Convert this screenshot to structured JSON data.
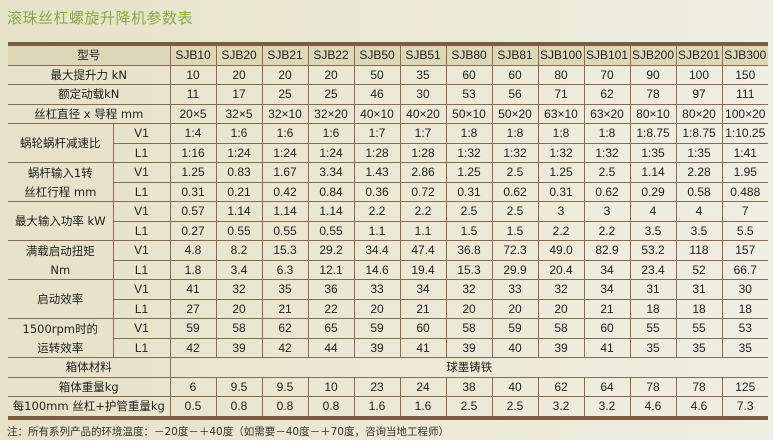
{
  "title": "滚珠丝杠螺旋升降机参数表",
  "header": {
    "label": "型号",
    "models": [
      "SJB10",
      "SJB20",
      "SJB21",
      "SJB22",
      "SJB50",
      "SJB51",
      "SJB80",
      "SJB81",
      "SJB100",
      "SJB101",
      "SJB200",
      "SJB201",
      "SJB300"
    ]
  },
  "rows": [
    {
      "label": "最大提升力 kN",
      "values": [
        "10",
        "20",
        "20",
        "20",
        "50",
        "35",
        "60",
        "60",
        "80",
        "70",
        "90",
        "100",
        "150"
      ]
    },
    {
      "label": "额定动载kN",
      "values": [
        "11",
        "17",
        "25",
        "25",
        "46",
        "30",
        "53",
        "56",
        "71",
        "62",
        "78",
        "97",
        "111"
      ]
    },
    {
      "label": "丝杠直径 x 导程 mm",
      "values": [
        "20×5",
        "32×5",
        "32×10",
        "32×20",
        "40×10",
        "40×20",
        "50×10",
        "50×20",
        "63×10",
        "63×20",
        "80×10",
        "80×20",
        "100×20"
      ]
    }
  ],
  "groups": [
    {
      "label": "蜗轮蜗杆减速比",
      "rows": [
        {
          "sub": "V1",
          "values": [
            "1:4",
            "1:6",
            "1:6",
            "1:6",
            "1:7",
            "1:7",
            "1:8",
            "1:8",
            "1:8",
            "1:8",
            "1:8.75",
            "1:8.75",
            "1:10.25"
          ]
        },
        {
          "sub": "L1",
          "values": [
            "1:16",
            "1:24",
            "1:24",
            "1:24",
            "1:28",
            "1:28",
            "1:32",
            "1:32",
            "1:32",
            "1:32",
            "1:35",
            "1:35",
            "1:41"
          ]
        }
      ]
    },
    {
      "label": "蜗杆输入1转",
      "label2": "丝杠行程 mm",
      "rows": [
        {
          "sub": "V1",
          "values": [
            "1.25",
            "0.83",
            "1.67",
            "3.34",
            "1.43",
            "2.86",
            "1.25",
            "2.5",
            "1.25",
            "2.5",
            "1.14",
            "2.28",
            "1.95"
          ]
        },
        {
          "sub": "L1",
          "values": [
            "0.31",
            "0.21",
            "0.42",
            "0.84",
            "0.36",
            "0.72",
            "0.31",
            "0.62",
            "0.31",
            "0.62",
            "0.29",
            "0.58",
            "0.488"
          ]
        }
      ]
    },
    {
      "label": "最大输入功率 kW",
      "rows": [
        {
          "sub": "V1",
          "values": [
            "0.57",
            "1.14",
            "1.14",
            "1.14",
            "2.2",
            "2.2",
            "2.5",
            "2.5",
            "3",
            "3",
            "4",
            "4",
            "7"
          ]
        },
        {
          "sub": "L1",
          "values": [
            "0.27",
            "0.55",
            "0.55",
            "0.55",
            "1.1",
            "1.1",
            "1.5",
            "1.5",
            "2.2",
            "2.2",
            "3.5",
            "3.5",
            "5.5"
          ]
        }
      ]
    },
    {
      "label": "满载启动扭矩",
      "label2": "Nm",
      "rows": [
        {
          "sub": "V1",
          "values": [
            "4.8",
            "8.2",
            "15.3",
            "29.2",
            "34.4",
            "47.4",
            "36.8",
            "72.3",
            "49.0",
            "82.9",
            "53.2",
            "118",
            "157"
          ]
        },
        {
          "sub": "L1",
          "values": [
            "1.8",
            "3.4",
            "6.3",
            "12.1",
            "14.6",
            "19.4",
            "15.3",
            "29.9",
            "20.4",
            "34",
            "23.4",
            "52",
            "66.7"
          ]
        }
      ]
    },
    {
      "label": "启动效率",
      "rows": [
        {
          "sub": "V1",
          "values": [
            "41",
            "32",
            "35",
            "36",
            "33",
            "34",
            "32",
            "33",
            "32",
            "34",
            "31",
            "31",
            "30"
          ]
        },
        {
          "sub": "L1",
          "values": [
            "27",
            "20",
            "21",
            "22",
            "20",
            "21",
            "20",
            "20",
            "20",
            "21",
            "18",
            "18",
            "18"
          ]
        }
      ]
    },
    {
      "label": "1500rpm时的",
      "label2": "运转效率",
      "rows": [
        {
          "sub": "V1",
          "values": [
            "59",
            "58",
            "62",
            "65",
            "59",
            "60",
            "58",
            "59",
            "58",
            "60",
            "55",
            "55",
            "53"
          ]
        },
        {
          "sub": "L1",
          "values": [
            "42",
            "39",
            "42",
            "44",
            "39",
            "41",
            "39",
            "40",
            "39",
            "41",
            "35",
            "35",
            "35"
          ]
        }
      ]
    }
  ],
  "material": {
    "label": "箱体材料",
    "value": "球墨铸铁"
  },
  "tail_rows": [
    {
      "label": "箱体重量kg",
      "values": [
        "6",
        "9.5",
        "9.5",
        "10",
        "23",
        "24",
        "38",
        "40",
        "62",
        "64",
        "78",
        "78",
        "125"
      ]
    },
    {
      "label": "每100mm 丝杠+护管重量kg",
      "values": [
        "0.5",
        "0.8",
        "0.8",
        "0.8",
        "1.6",
        "1.6",
        "2.5",
        "2.5",
        "3.2",
        "3.2",
        "4.6",
        "4.6",
        "7.3"
      ]
    }
  ],
  "note": "注：所有系列产品的环境温度：－20度－＋40度（如需要－40度－＋70度，咨询当地工程师）"
}
